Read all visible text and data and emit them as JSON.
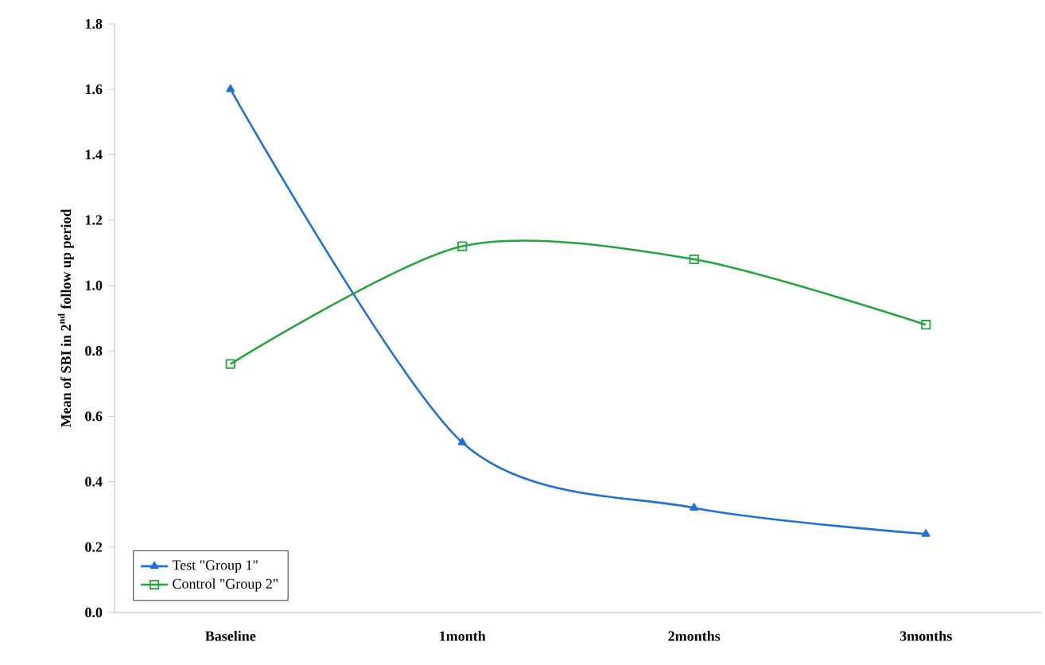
{
  "chart_data": {
    "type": "line",
    "ylabel": "Mean of SBI in 2$^{nd}$ follow up period",
    "categories": [
      "Baseline",
      "1month",
      "2months",
      "3months"
    ],
    "series": [
      {
        "name": "Test \"Group 1\"",
        "color": "#1f6fdc",
        "values": [
          1.6,
          0.52,
          0.32,
          0.24
        ],
        "marker": "triangle"
      },
      {
        "name": "Control \"Group 2\"",
        "color": "#22a53a",
        "values": [
          0.76,
          1.12,
          1.08,
          0.88
        ],
        "marker": "square"
      }
    ],
    "ylim": [
      0,
      1.8
    ],
    "yticks": [
      {
        "value": 0,
        "label": "0.0"
      },
      {
        "value": 0.2,
        "label": "0.2"
      },
      {
        "value": 0.4,
        "label": "0.4"
      },
      {
        "value": 0.6,
        "label": "0.6"
      },
      {
        "value": 0.8,
        "label": "0.8"
      },
      {
        "value": 1.0,
        "label": "1.0"
      },
      {
        "value": 1.2,
        "label": "1.2"
      },
      {
        "value": 1.4,
        "label": "1.4"
      },
      {
        "value": 1.6,
        "label": "1.6"
      },
      {
        "value": 1.8,
        "label": "1.8"
      }
    ],
    "legend": "bottom left",
    "grid": false
  }
}
